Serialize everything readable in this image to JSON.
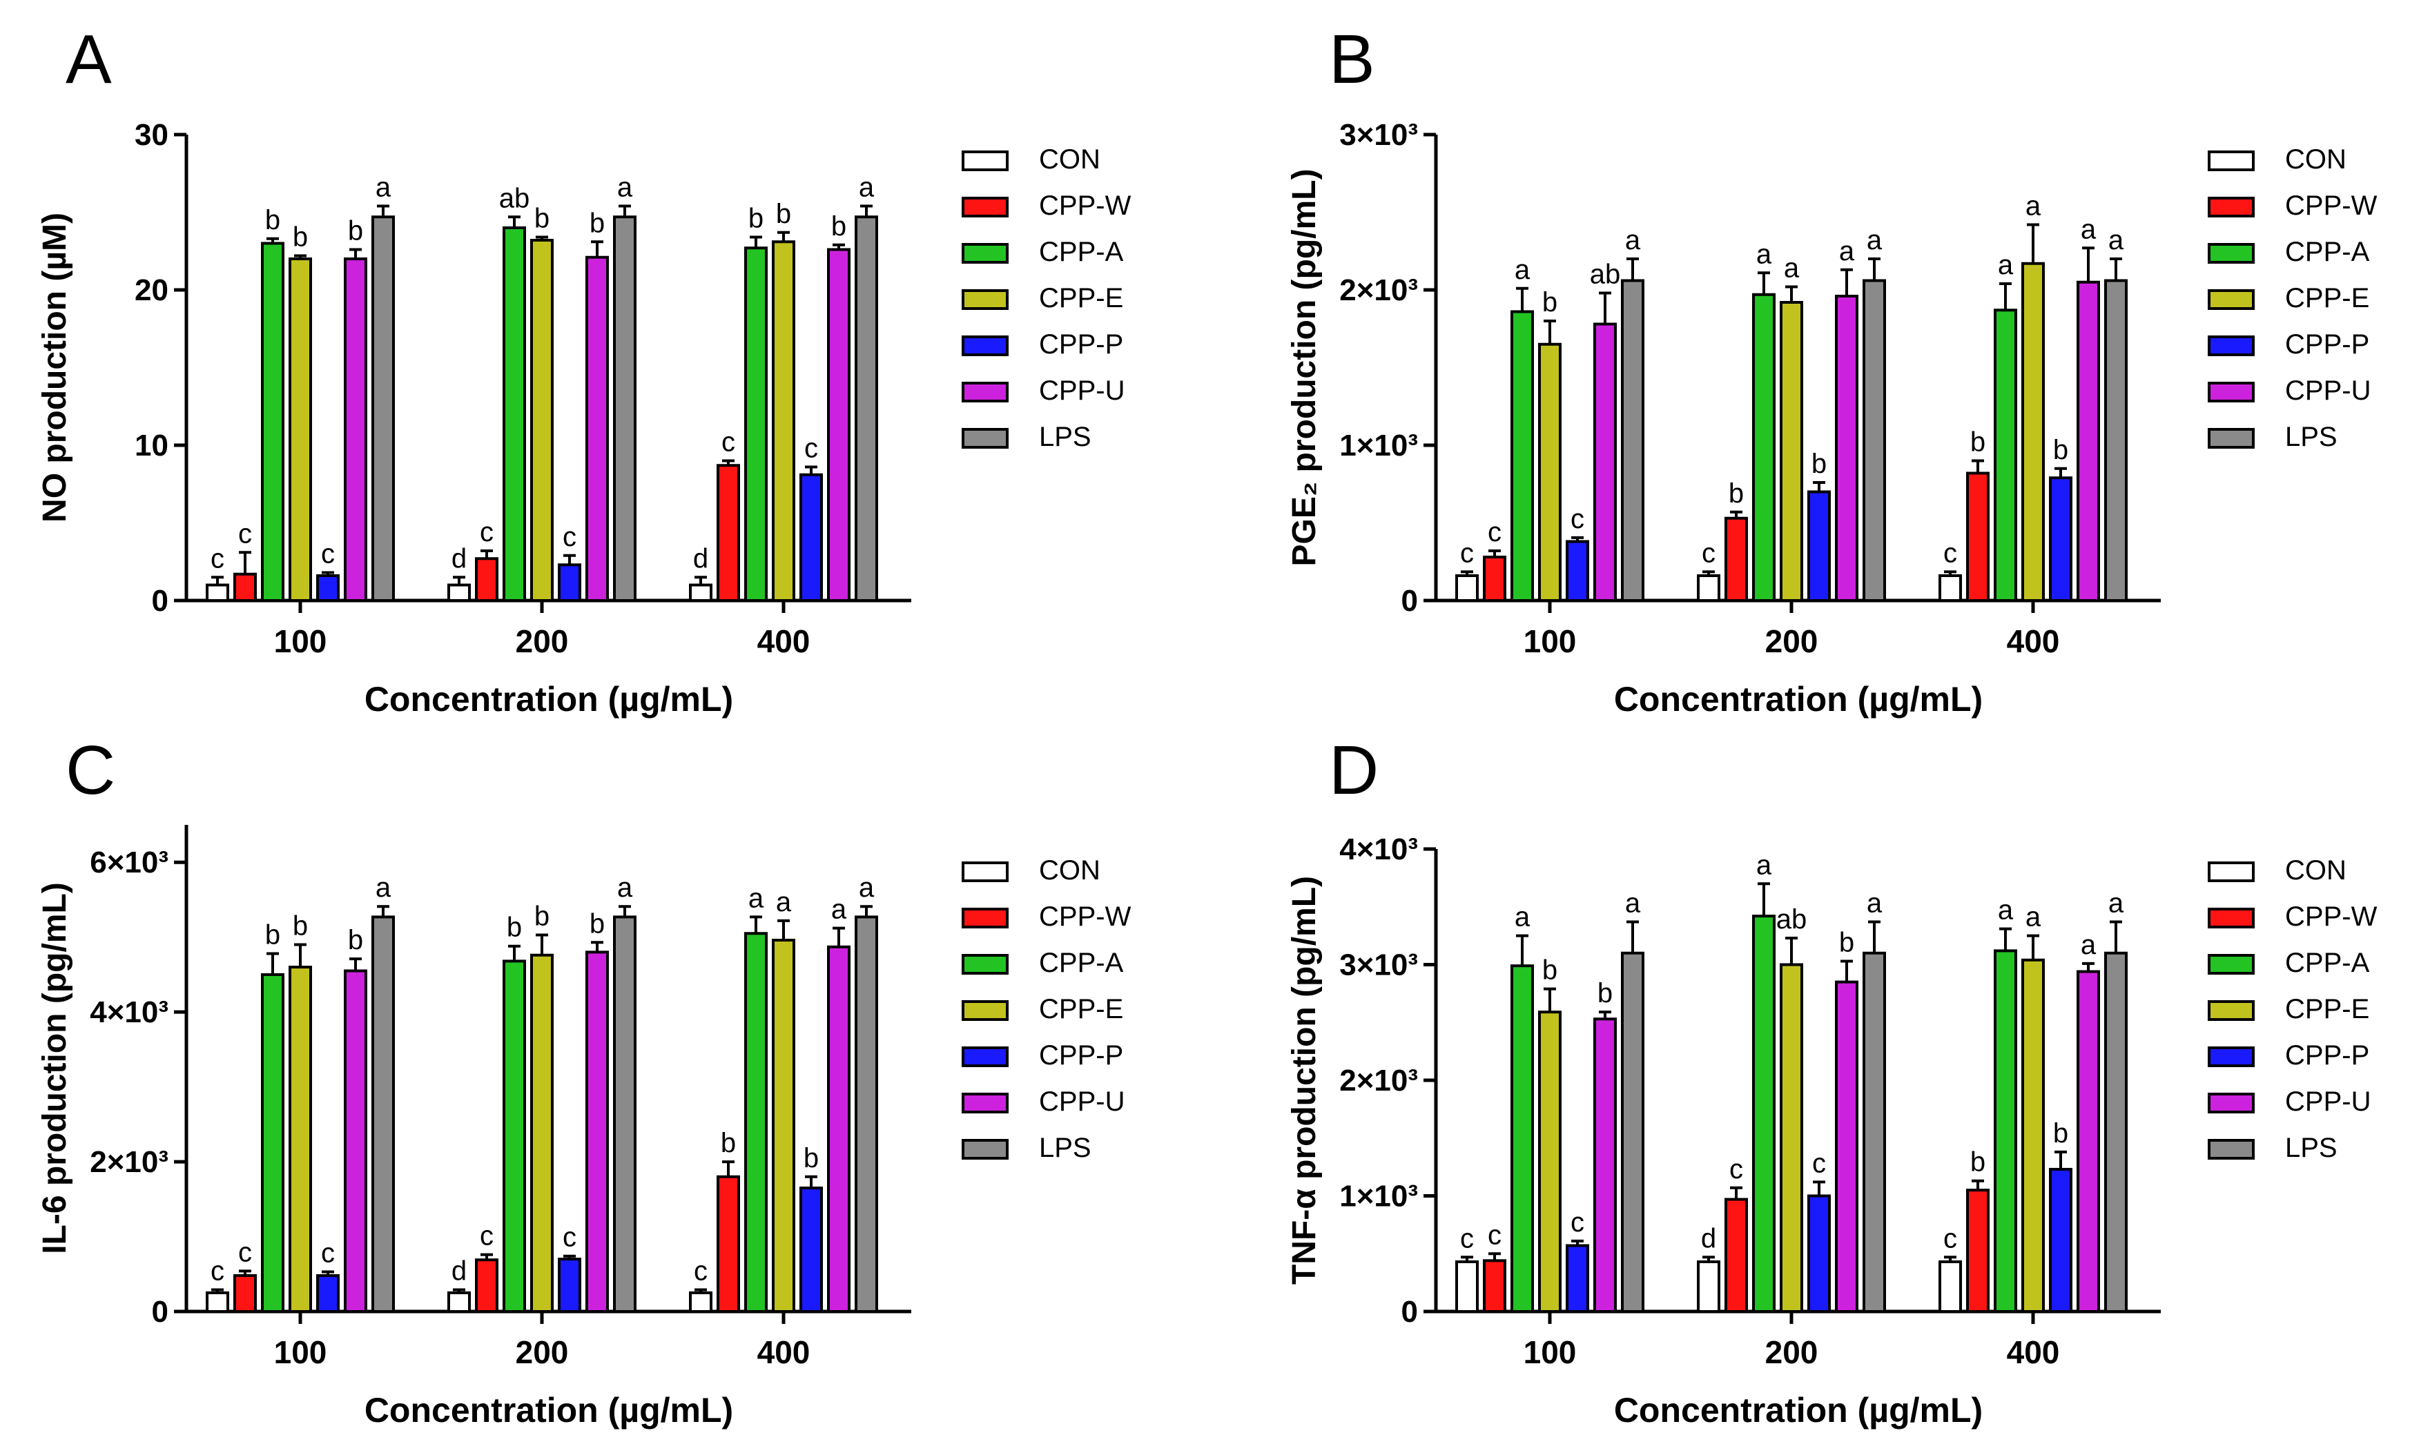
{
  "figure": {
    "groups": [
      "100",
      "200",
      "400"
    ],
    "xlabel": "Concentration (µg/mL)",
    "legend": [
      {
        "name": "CON",
        "color": "#ffffff"
      },
      {
        "name": "CPP-W",
        "color": "#ff1414"
      },
      {
        "name": "CPP-A",
        "color": "#22c322"
      },
      {
        "name": "CPP-E",
        "color": "#c2c21e"
      },
      {
        "name": "CPP-P",
        "color": "#1a1aff"
      },
      {
        "name": "CPP-U",
        "color": "#cc22dd"
      },
      {
        "name": "LPS",
        "color": "#8a8a8a"
      }
    ]
  },
  "chart_data": [
    {
      "type": "bar",
      "panel": "A",
      "title": "",
      "ylabel": "NO production (µM)",
      "xlabel": "Concentration (µg/mL)",
      "ylim": [
        0,
        30
      ],
      "yticks": [
        {
          "v": 0,
          "label": "0"
        },
        {
          "v": 10,
          "label": "10"
        },
        {
          "v": 20,
          "label": "20"
        },
        {
          "v": 30,
          "label": "30"
        }
      ],
      "categories": [
        "100",
        "200",
        "400"
      ],
      "series": [
        {
          "name": "CON",
          "values": [
            1.0,
            1.0,
            1.0
          ],
          "errors": [
            0.5,
            0.5,
            0.5
          ],
          "letters": [
            "c",
            "d",
            "d"
          ]
        },
        {
          "name": "CPP-W",
          "values": [
            1.7,
            2.7,
            8.7
          ],
          "errors": [
            1.4,
            0.5,
            0.3
          ],
          "letters": [
            "c",
            "c",
            "c"
          ]
        },
        {
          "name": "CPP-A",
          "values": [
            23.0,
            24.0,
            22.7
          ],
          "errors": [
            0.3,
            0.7,
            0.7
          ],
          "letters": [
            "b",
            "ab",
            "b"
          ]
        },
        {
          "name": "CPP-E",
          "values": [
            22.0,
            23.2,
            23.1
          ],
          "errors": [
            0.2,
            0.2,
            0.6
          ],
          "letters": [
            "b",
            "b",
            "b"
          ]
        },
        {
          "name": "CPP-P",
          "values": [
            1.6,
            2.3,
            8.1
          ],
          "errors": [
            0.2,
            0.6,
            0.5
          ],
          "letters": [
            "c",
            "c",
            "c"
          ]
        },
        {
          "name": "CPP-U",
          "values": [
            22.0,
            22.1,
            22.6
          ],
          "errors": [
            0.6,
            1.0,
            0.3
          ],
          "letters": [
            "b",
            "b",
            "b"
          ]
        },
        {
          "name": "LPS",
          "values": [
            24.7,
            24.7,
            24.7
          ],
          "errors": [
            0.7,
            0.7,
            0.7
          ],
          "letters": [
            "a",
            "a",
            "a"
          ]
        }
      ]
    },
    {
      "type": "bar",
      "panel": "B",
      "title": "",
      "ylabel": "PGE₂ production (pg/mL)",
      "xlabel": "Concentration (µg/mL)",
      "ylim": [
        0,
        3000
      ],
      "yticks": [
        {
          "v": 0,
          "label": "0"
        },
        {
          "v": 1000,
          "label": "1×10³"
        },
        {
          "v": 2000,
          "label": "2×10³"
        },
        {
          "v": 3000,
          "label": "3×10³"
        }
      ],
      "categories": [
        "100",
        "200",
        "400"
      ],
      "series": [
        {
          "name": "CON",
          "values": [
            160,
            160,
            160
          ],
          "errors": [
            25,
            25,
            25
          ],
          "letters": [
            "c",
            "c",
            "c"
          ]
        },
        {
          "name": "CPP-W",
          "values": [
            280,
            530,
            820
          ],
          "errors": [
            40,
            40,
            80
          ],
          "letters": [
            "c",
            "b",
            "b"
          ]
        },
        {
          "name": "CPP-A",
          "values": [
            1860,
            1970,
            1870
          ],
          "errors": [
            150,
            140,
            170
          ],
          "letters": [
            "a",
            "a",
            "a"
          ]
        },
        {
          "name": "CPP-E",
          "values": [
            1650,
            1920,
            2170
          ],
          "errors": [
            150,
            100,
            250
          ],
          "letters": [
            "b",
            "a",
            "a"
          ]
        },
        {
          "name": "CPP-P",
          "values": [
            380,
            700,
            790
          ],
          "errors": [
            25,
            60,
            60
          ],
          "letters": [
            "c",
            "b",
            "b"
          ]
        },
        {
          "name": "CPP-U",
          "values": [
            1780,
            1960,
            2050
          ],
          "errors": [
            200,
            170,
            220
          ],
          "letters": [
            "ab",
            "a",
            "a"
          ]
        },
        {
          "name": "LPS",
          "values": [
            2060,
            2060,
            2060
          ],
          "errors": [
            140,
            140,
            140
          ],
          "letters": [
            "a",
            "a",
            "a"
          ]
        }
      ]
    },
    {
      "type": "bar",
      "panel": "C",
      "title": "",
      "ylabel": "IL-6 production (pg/mL)",
      "xlabel": "Concentration (µg/mL)",
      "ylim": [
        0,
        6500
      ],
      "yticks": [
        {
          "v": 0,
          "label": "0"
        },
        {
          "v": 2000,
          "label": "2×10³"
        },
        {
          "v": 4000,
          "label": "4×10³"
        },
        {
          "v": 6000,
          "label": "6×10³"
        }
      ],
      "categories": [
        "100",
        "200",
        "400"
      ],
      "series": [
        {
          "name": "CON",
          "values": [
            250,
            250,
            250
          ],
          "errors": [
            40,
            40,
            40
          ],
          "letters": [
            "c",
            "d",
            "c"
          ]
        },
        {
          "name": "CPP-W",
          "values": [
            480,
            690,
            1800
          ],
          "errors": [
            60,
            70,
            200
          ],
          "letters": [
            "c",
            "c",
            "b"
          ]
        },
        {
          "name": "CPP-A",
          "values": [
            4500,
            4680,
            5050
          ],
          "errors": [
            280,
            200,
            220
          ],
          "letters": [
            "b",
            "b",
            "a"
          ]
        },
        {
          "name": "CPP-E",
          "values": [
            4600,
            4760,
            4960
          ],
          "errors": [
            300,
            270,
            260
          ],
          "letters": [
            "b",
            "b",
            "a"
          ]
        },
        {
          "name": "CPP-P",
          "values": [
            480,
            700,
            1650
          ],
          "errors": [
            50,
            40,
            150
          ],
          "letters": [
            "c",
            "c",
            "b"
          ]
        },
        {
          "name": "CPP-U",
          "values": [
            4550,
            4800,
            4870
          ],
          "errors": [
            160,
            130,
            250
          ],
          "letters": [
            "b",
            "b",
            "a"
          ]
        },
        {
          "name": "LPS",
          "values": [
            5270,
            5270,
            5270
          ],
          "errors": [
            140,
            140,
            140
          ],
          "letters": [
            "a",
            "a",
            "a"
          ]
        }
      ]
    },
    {
      "type": "bar",
      "panel": "D",
      "title": "",
      "ylabel": "TNF-α production (pg/mL)",
      "xlabel": "Concentration (µg/mL)",
      "ylim": [
        0,
        4000
      ],
      "yticks": [
        {
          "v": 0,
          "label": "0"
        },
        {
          "v": 1000,
          "label": "1×10³"
        },
        {
          "v": 2000,
          "label": "2×10³"
        },
        {
          "v": 3000,
          "label": "3×10³"
        },
        {
          "v": 4000,
          "label": "4×10³"
        }
      ],
      "categories": [
        "100",
        "200",
        "400"
      ],
      "series": [
        {
          "name": "CON",
          "values": [
            430,
            430,
            430
          ],
          "errors": [
            40,
            40,
            40
          ],
          "letters": [
            "c",
            "d",
            "c"
          ]
        },
        {
          "name": "CPP-W",
          "values": [
            440,
            970,
            1050
          ],
          "errors": [
            60,
            100,
            80
          ],
          "letters": [
            "c",
            "c",
            "b"
          ]
        },
        {
          "name": "CPP-A",
          "values": [
            2990,
            3420,
            3120
          ],
          "errors": [
            260,
            280,
            190
          ],
          "letters": [
            "a",
            "a",
            "a"
          ]
        },
        {
          "name": "CPP-E",
          "values": [
            2590,
            3000,
            3040
          ],
          "errors": [
            200,
            230,
            210
          ],
          "letters": [
            "b",
            "ab",
            "a"
          ]
        },
        {
          "name": "CPP-P",
          "values": [
            570,
            1000,
            1230
          ],
          "errors": [
            40,
            120,
            150
          ],
          "letters": [
            "c",
            "c",
            "b"
          ]
        },
        {
          "name": "CPP-U",
          "values": [
            2530,
            2850,
            2940
          ],
          "errors": [
            60,
            180,
            70
          ],
          "letters": [
            "b",
            "b",
            "a"
          ]
        },
        {
          "name": "LPS",
          "values": [
            3100,
            3100,
            3100
          ],
          "errors": [
            270,
            270,
            270
          ],
          "letters": [
            "a",
            "a",
            "a"
          ]
        }
      ]
    }
  ]
}
